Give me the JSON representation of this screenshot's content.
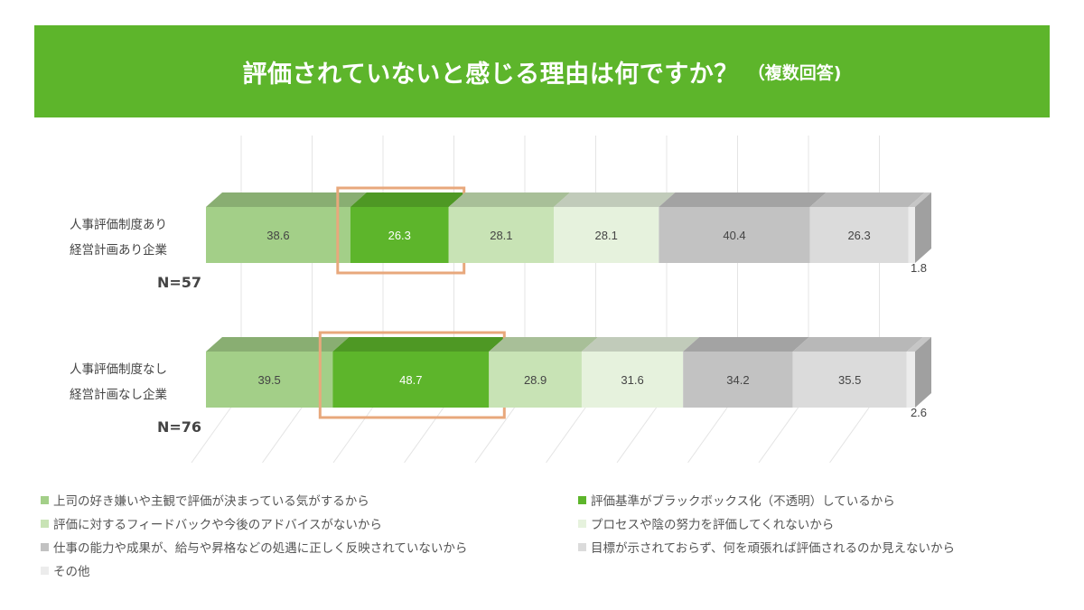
{
  "header": {
    "title": "評価されていないと感じる理由は何ですか？",
    "subtitle": "（複数回答)",
    "color": "#5db52b"
  },
  "chart_data": {
    "type": "bar",
    "stacked": true,
    "orientation": "horizontal",
    "three_d": true,
    "categories": [
      {
        "line1": "人事評価制度あり",
        "line2": "経営計画あり企業",
        "n": "N=57"
      },
      {
        "line1": "人事評価制度なし",
        "line2": "経営計画なし企業",
        "n": "N=76"
      }
    ],
    "series": [
      {
        "name": "上司の好き嫌いや主観で評価が決まっている気がするから",
        "color": "#a3cf88",
        "values": [
          38.6,
          39.5
        ]
      },
      {
        "name": "評価基準がブラックボックス化（不透明）しているから",
        "color": "#5db52b",
        "values": [
          26.3,
          48.7
        ]
      },
      {
        "name": "評価に対するフィードバックや今後のアドバイスがないから",
        "color": "#c8e3b5",
        "values": [
          28.1,
          28.9
        ]
      },
      {
        "name": "プロセスや陰の努力を評価してくれないから",
        "color": "#e6f2dd",
        "values": [
          28.1,
          31.6
        ]
      },
      {
        "name": "仕事の能力や成果が、給与や昇格などの処遇に正しく反映されていないから",
        "color": "#c2c2c2",
        "values": [
          40.4,
          34.2
        ]
      },
      {
        "name": "目標が示されておらず、何を頑張れば評価されるのか見えないから",
        "color": "#dbdbdb",
        "values": [
          26.3,
          35.5
        ]
      },
      {
        "name": "その他",
        "color": "#ececec",
        "values": [
          1.8,
          2.6
        ]
      }
    ],
    "highlight": {
      "series_index": 1,
      "color": "#e8a87c"
    },
    "grid": true
  }
}
